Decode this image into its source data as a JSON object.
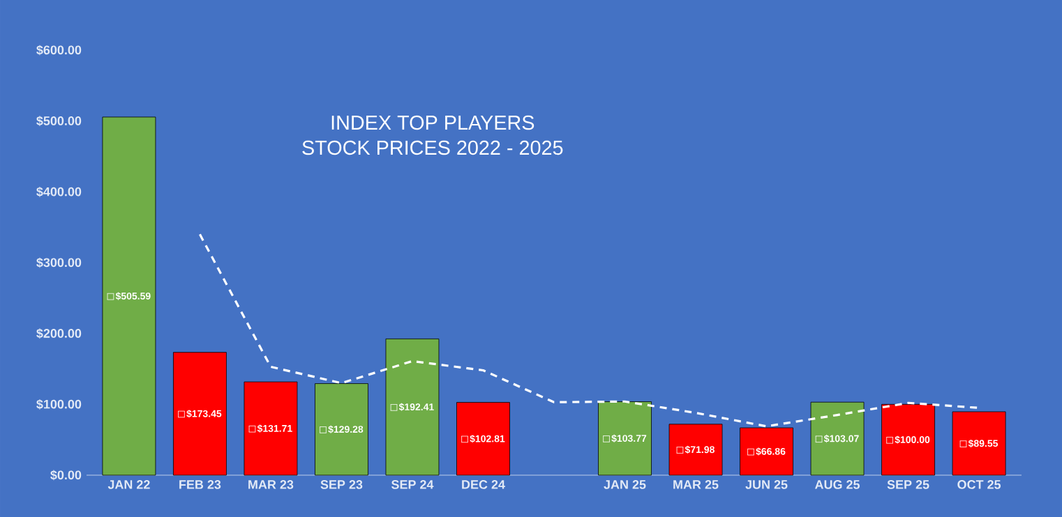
{
  "chart_data": {
    "type": "bar",
    "title": "INDEX TOP PLAYERS",
    "subtitle": "STOCK PRICES 2022 - 2025",
    "categories": [
      "JAN 22",
      "FEB  23",
      "MAR 23",
      "SEP 23",
      "SEP 24",
      "DEC 24",
      null,
      "JAN  25",
      "MAR 25",
      "JUN 25",
      "AUG 25",
      "SEP 25",
      "OCT 25"
    ],
    "series": [
      {
        "values": [
          505.59,
          173.45,
          131.71,
          129.28,
          192.41,
          102.81,
          null,
          103.77,
          71.98,
          66.86,
          103.07,
          100.0,
          89.55
        ],
        "colors": [
          "#70ad47",
          "#ff0000",
          "#ff0000",
          "#70ad47",
          "#70ad47",
          "#ff0000",
          "#ff0000",
          "#70ad47",
          "#ff0000",
          "#ff0000",
          "#70ad47",
          "#ff0000",
          "#ff0000"
        ],
        "value_labels": [
          "$505.59",
          "$173.45",
          "$131.71",
          "$129.28",
          "$192.41",
          "$102.81",
          null,
          "$103.77",
          "$71.98",
          "$66.86",
          "$103.07",
          "$100.00",
          "$89.55"
        ]
      },
      {
        "type": "line",
        "color": "#ffffff",
        "line_style": "dashed",
        "values": [
          null,
          340,
          153,
          130,
          161,
          148,
          103,
          104,
          88,
          69,
          85,
          102,
          95
        ]
      }
    ],
    "ylim": [
      0,
      600
    ],
    "yticks": [
      {
        "value": 0,
        "label": "$0.00"
      },
      {
        "value": 100,
        "label": "$100.00"
      },
      {
        "value": 200,
        "label": "$200.00"
      },
      {
        "value": 300,
        "label": "$300.00"
      },
      {
        "value": 400,
        "label": "$400.00"
      },
      {
        "value": 500,
        "label": "$500.00"
      },
      {
        "value": 600,
        "label": "$600.00"
      }
    ],
    "grid": false
  }
}
